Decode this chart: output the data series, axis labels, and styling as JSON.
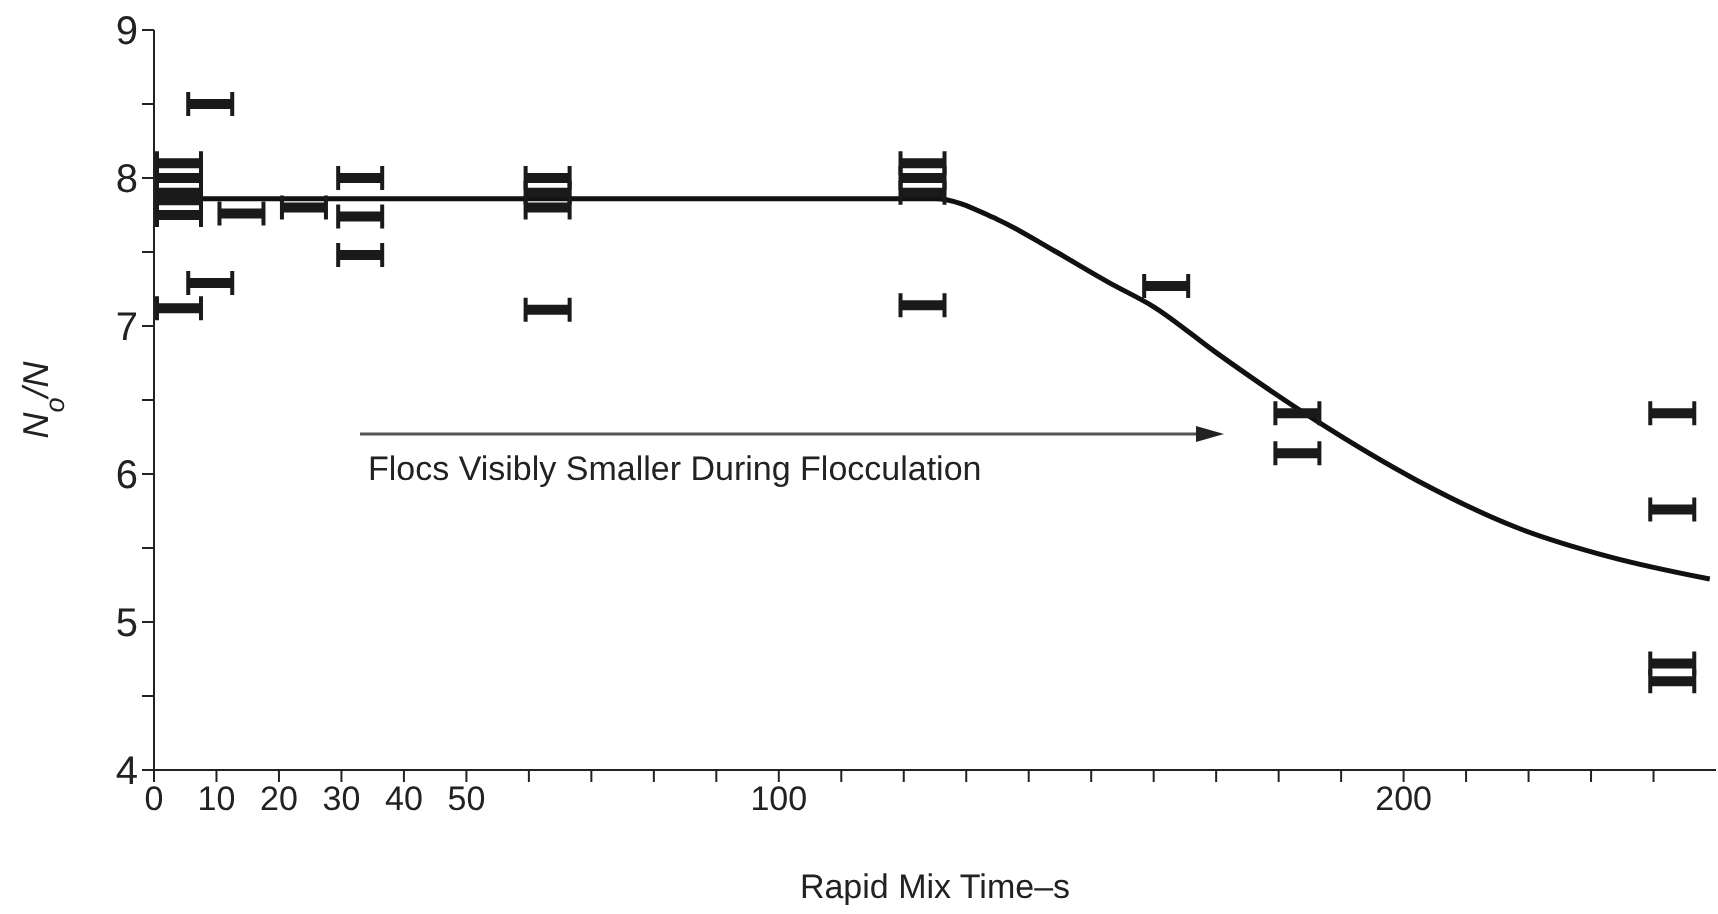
{
  "chart_data": {
    "type": "scatter",
    "xlabel": "Rapid Mix Time–s",
    "ylabel": "N$_{o}$/N",
    "xlim": [
      0,
      250
    ],
    "ylim": [
      4,
      9
    ],
    "xticks": [
      0,
      10,
      20,
      30,
      40,
      50,
      {
        "value": 60,
        "label": null
      },
      {
        "value": 70,
        "label": null
      },
      {
        "value": 80,
        "label": null
      },
      {
        "value": 90,
        "label": null
      },
      100,
      {
        "value": 110,
        "label": null
      },
      {
        "value": 120,
        "label": null
      },
      {
        "value": 130,
        "label": null
      },
      {
        "value": 140,
        "label": null
      },
      {
        "value": 150,
        "label": null
      },
      {
        "value": 160,
        "label": null
      },
      {
        "value": 170,
        "label": null
      },
      {
        "value": 180,
        "label": null
      },
      {
        "value": 190,
        "label": null
      },
      200,
      {
        "value": 210,
        "label": null
      },
      {
        "value": 220,
        "label": null
      },
      {
        "value": 230,
        "label": null
      },
      {
        "value": 240,
        "label": null
      }
    ],
    "yticks": [
      4,
      {
        "value": 4.5,
        "label": null
      },
      5,
      {
        "value": 5.5,
        "label": null
      },
      6,
      {
        "value": 6.5,
        "label": null
      },
      7,
      {
        "value": 7.5,
        "label": null
      },
      8,
      {
        "value": 8.5,
        "label": null
      },
      9
    ],
    "annotations": [
      "Flocs Visibly Smaller During Flocculation"
    ],
    "series": [
      {
        "color": "#1a1a1a",
        "x": [
          4,
          4,
          4,
          4,
          4,
          4,
          9,
          9,
          14,
          24,
          33,
          33,
          33,
          63,
          63,
          63,
          63,
          123,
          123,
          123,
          123,
          162,
          183,
          183,
          243,
          243,
          243,
          243
        ],
        "values": [
          8.1,
          8.0,
          7.9,
          7.85,
          7.75,
          7.12,
          8.5,
          7.29,
          7.76,
          7.8,
          8.0,
          7.74,
          7.48,
          8.0,
          7.9,
          7.8,
          7.11,
          8.1,
          8.0,
          7.9,
          7.14,
          7.27,
          6.41,
          6.14,
          6.41,
          5.76,
          4.72,
          4.6
        ]
      },
      {
        "type": "line",
        "color": "#111111",
        "line_style": "solid",
        "x": [
          0,
          125,
          135,
          144,
          153,
          160,
          170,
          186,
          202,
          218,
          233,
          249
        ],
        "values": [
          7.86,
          7.86,
          7.72,
          7.51,
          7.29,
          7.13,
          6.82,
          6.36,
          5.96,
          5.64,
          5.44,
          5.29
        ]
      }
    ]
  }
}
